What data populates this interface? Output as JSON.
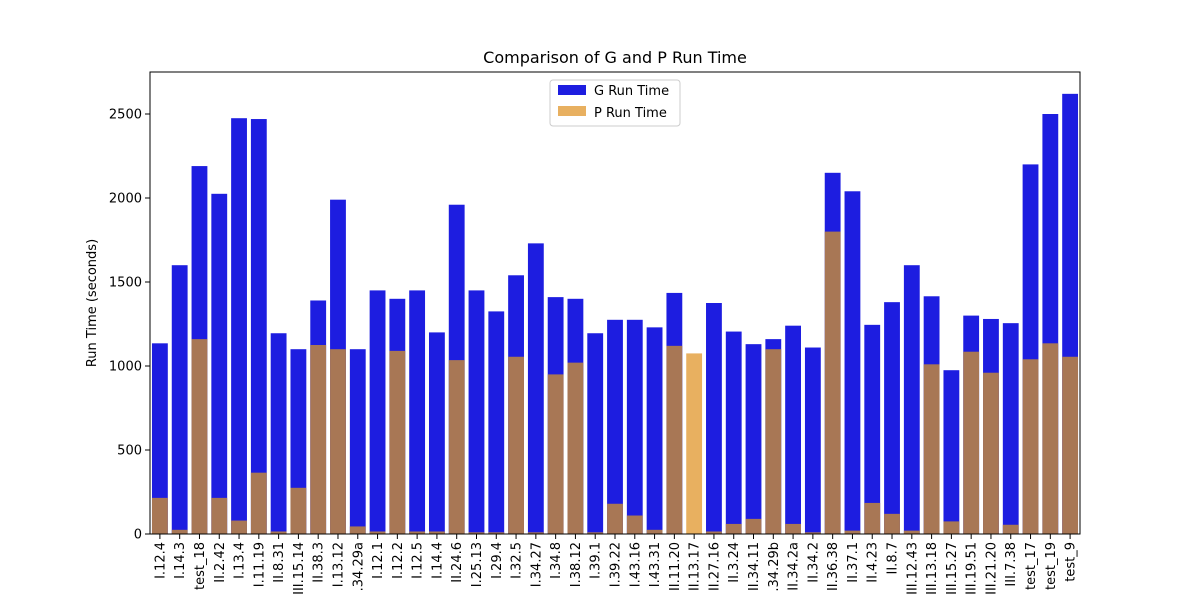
{
  "chart_data": {
    "type": "bar",
    "title": "Comparison of G and P Run Time",
    "xlabel": "",
    "ylabel": "Run Time (seconds)",
    "ylim": [
      0,
      2750
    ],
    "yticks": [
      0,
      500,
      1000,
      1500,
      2000,
      2500
    ],
    "grid": false,
    "legend_position": "top-center",
    "categories": [
      "I.12.4",
      "I.14.3",
      "test_18",
      "II.2.42",
      "I.13.4",
      "I.11.19",
      "II.8.31",
      "III.15.14",
      "II.38.3",
      "I.13.12",
      ".34.29a",
      "I.12.1",
      "I.12.2",
      "I.12.5",
      "I.14.4",
      "II.24.6",
      "I.25.13",
      "I.29.4",
      "I.32.5",
      "I.34.27",
      "I.34.8",
      "I.38.12",
      "I.39.1",
      "I.39.22",
      "I.43.16",
      "I.43.31",
      "II.11.20",
      "II.13.17",
      "II.27.16",
      "II.3.24",
      "II.34.11",
      ".34.29b",
      "II.34.2a",
      "II.34.2",
      "II.36.38",
      "II.37.1",
      "II.4.23",
      "II.8.7",
      "III.12.43",
      "III.13.18",
      "III.15.27",
      "III.19.51",
      "III.21.20",
      "III.7.38",
      "test_17",
      "test_19",
      "test_9"
    ],
    "series": [
      {
        "name": "G Run Time",
        "color": "#0000ee",
        "values": [
          1135,
          1600,
          2190,
          2025,
          2475,
          2470,
          1195,
          1100,
          1390,
          1990,
          1100,
          1450,
          1400,
          1450,
          1200,
          1960,
          1450,
          1325,
          1540,
          1730,
          1410,
          1400,
          1195,
          1275,
          1275,
          1230,
          1435,
          0,
          1375,
          1205,
          1130,
          1160,
          1240,
          1110,
          2150,
          2040,
          1245,
          1380,
          1600,
          1415,
          975,
          1300,
          1280,
          1255,
          2200,
          2500,
          2620
        ]
      },
      {
        "name": "P Run Time",
        "color": "#e8a33c",
        "values": [
          215,
          25,
          1160,
          215,
          80,
          365,
          15,
          275,
          1125,
          1100,
          45,
          15,
          1090,
          15,
          15,
          1035,
          10,
          10,
          1055,
          10,
          950,
          1020,
          10,
          180,
          110,
          25,
          1120,
          1075,
          15,
          60,
          90,
          1100,
          60,
          10,
          1800,
          20,
          185,
          120,
          20,
          1010,
          75,
          1085,
          960,
          55,
          1040,
          1135,
          1055
        ]
      }
    ]
  }
}
